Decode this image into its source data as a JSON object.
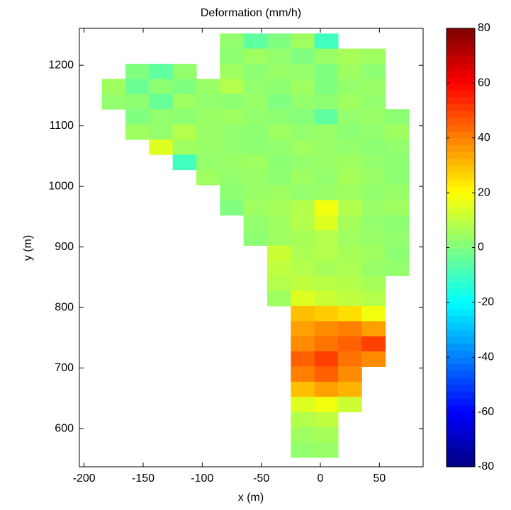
{
  "chart_data": {
    "type": "heatmap",
    "title": "Deformation (mm/h)",
    "xlabel": "x (m)",
    "ylabel": "y (m)",
    "x": [
      -175,
      -155,
      -135,
      -115,
      -95,
      -75,
      -55,
      -35,
      -15,
      5,
      25,
      45,
      65
    ],
    "y": [
      1240,
      1215,
      1190,
      1165,
      1140,
      1115,
      1090,
      1065,
      1040,
      1015,
      990,
      965,
      940,
      915,
      890,
      865,
      840,
      815,
      790,
      765,
      740,
      715,
      690,
      665,
      640,
      615,
      590,
      565
    ],
    "values": [
      [
        null,
        null,
        null,
        null,
        null,
        3,
        -5,
        0,
        5,
        -10,
        null,
        null,
        null
      ],
      [
        null,
        null,
        null,
        null,
        null,
        2,
        5,
        3,
        0,
        4,
        6,
        5,
        null
      ],
      [
        null,
        0,
        -5,
        3,
        null,
        5,
        2,
        4,
        3,
        0,
        5,
        2,
        null
      ],
      [
        5,
        -3,
        2,
        0,
        4,
        8,
        3,
        2,
        5,
        0,
        3,
        4,
        null
      ],
      [
        3,
        2,
        -4,
        5,
        3,
        2,
        4,
        0,
        3,
        2,
        5,
        3,
        null
      ],
      [
        null,
        0,
        3,
        2,
        4,
        5,
        3,
        2,
        1,
        -5,
        3,
        4,
        2
      ],
      [
        null,
        5,
        3,
        8,
        4,
        3,
        2,
        5,
        3,
        4,
        2,
        3,
        5
      ],
      [
        null,
        null,
        15,
        5,
        4,
        3,
        2,
        3,
        5,
        4,
        3,
        2,
        3
      ],
      [
        null,
        null,
        null,
        -10,
        3,
        4,
        5,
        2,
        3,
        4,
        5,
        3,
        2
      ],
      [
        null,
        null,
        null,
        null,
        5,
        3,
        4,
        2,
        5,
        3,
        6,
        4,
        2
      ],
      [
        null,
        null,
        null,
        null,
        null,
        2,
        4,
        5,
        3,
        4,
        5,
        3,
        4
      ],
      [
        null,
        null,
        null,
        null,
        null,
        0,
        5,
        6,
        8,
        18,
        8,
        4,
        5
      ],
      [
        null,
        null,
        null,
        null,
        null,
        null,
        3,
        5,
        8,
        15,
        6,
        3,
        2
      ],
      [
        null,
        null,
        null,
        null,
        null,
        null,
        2,
        5,
        6,
        8,
        5,
        4,
        3
      ],
      [
        null,
        null,
        null,
        null,
        null,
        null,
        null,
        12,
        7,
        8,
        6,
        5,
        2
      ],
      [
        null,
        null,
        null,
        null,
        null,
        null,
        null,
        10,
        8,
        6,
        7,
        4,
        3
      ],
      [
        null,
        null,
        null,
        null,
        null,
        null,
        null,
        8,
        10,
        9,
        8,
        6,
        null
      ],
      [
        null,
        null,
        null,
        null,
        null,
        null,
        null,
        5,
        15,
        12,
        10,
        8,
        null
      ],
      [
        null,
        null,
        null,
        null,
        null,
        null,
        null,
        null,
        30,
        28,
        25,
        18,
        null
      ],
      [
        null,
        null,
        null,
        null,
        null,
        null,
        null,
        null,
        35,
        38,
        40,
        35,
        null
      ],
      [
        null,
        null,
        null,
        null,
        null,
        null,
        null,
        null,
        38,
        42,
        45,
        50,
        null
      ],
      [
        null,
        null,
        null,
        null,
        null,
        null,
        null,
        null,
        45,
        50,
        42,
        38,
        null
      ],
      [
        null,
        null,
        null,
        null,
        null,
        null,
        null,
        null,
        40,
        45,
        38,
        null,
        null
      ],
      [
        null,
        null,
        null,
        null,
        null,
        null,
        null,
        null,
        30,
        35,
        32,
        null,
        null
      ],
      [
        null,
        null,
        null,
        null,
        null,
        null,
        null,
        null,
        15,
        18,
        12,
        null,
        null
      ],
      [
        null,
        null,
        null,
        null,
        null,
        null,
        null,
        null,
        8,
        10,
        null,
        null,
        null
      ],
      [
        null,
        null,
        null,
        null,
        null,
        null,
        null,
        null,
        5,
        6,
        null,
        null,
        null
      ],
      [
        null,
        null,
        null,
        null,
        null,
        null,
        null,
        null,
        3,
        4,
        null,
        null,
        null
      ]
    ],
    "colormap": "jet",
    "xlim": [
      -204,
      87
    ],
    "ylim": [
      537,
      1261
    ],
    "xticks": [
      -200,
      -150,
      -100,
      -50,
      0,
      50
    ],
    "yticks": [
      600,
      700,
      800,
      900,
      1000,
      1100,
      1200
    ],
    "clim": [
      -80,
      80
    ],
    "cticks": [
      -80,
      -60,
      -40,
      -20,
      0,
      20,
      40,
      60,
      80
    ]
  }
}
